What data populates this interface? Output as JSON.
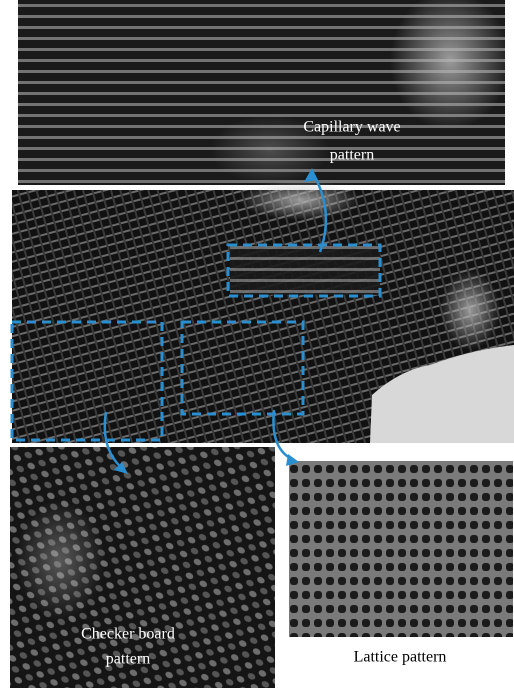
{
  "figure": {
    "labels": [
      {
        "lines": [
          "Capillary wave",
          "pattern"
        ]
      },
      {
        "lines": [
          "Checker board",
          "pattern"
        ]
      },
      {
        "lines": [
          "Lattice pattern"
        ]
      }
    ]
  }
}
